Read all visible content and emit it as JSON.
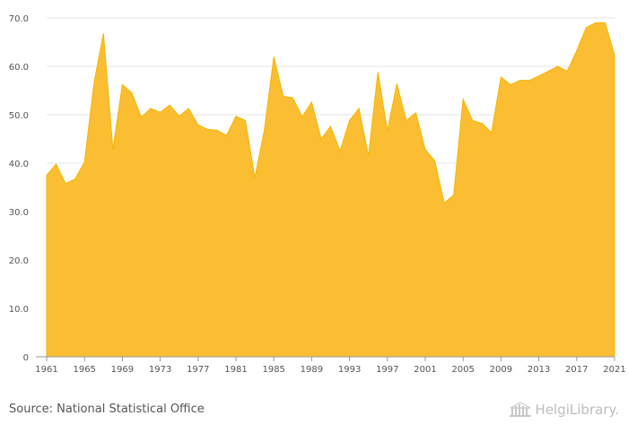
{
  "chart_data": {
    "type": "area",
    "title": "",
    "xlabel": "",
    "ylabel": "",
    "ylim": [
      0,
      70
    ],
    "yticks": [
      0,
      10,
      20,
      30,
      40,
      50,
      60,
      70
    ],
    "ytick_labels": [
      "0",
      "10.0",
      "20.0",
      "30.0",
      "40.0",
      "50.0",
      "60.0",
      "70.0"
    ],
    "xticks": [
      1961,
      1965,
      1969,
      1973,
      1977,
      1981,
      1985,
      1989,
      1993,
      1997,
      2001,
      2005,
      2009,
      2013,
      2017,
      2021
    ],
    "xtick_labels": [
      "1961",
      "1965",
      "1969",
      "1973",
      "1977",
      "1981",
      "1985",
      "1989",
      "1993",
      "1997",
      "2001",
      "2005",
      "2009",
      "2013",
      "2017",
      "2021"
    ],
    "x": [
      1961,
      1962,
      1963,
      1964,
      1965,
      1966,
      1967,
      1968,
      1969,
      1970,
      1971,
      1972,
      1973,
      1974,
      1975,
      1976,
      1977,
      1978,
      1979,
      1980,
      1981,
      1982,
      1983,
      1984,
      1985,
      1986,
      1987,
      1988,
      1989,
      1990,
      1991,
      1992,
      1993,
      1994,
      1995,
      1996,
      1997,
      1998,
      1999,
      2000,
      2001,
      2002,
      2003,
      2004,
      2005,
      2006,
      2007,
      2008,
      2009,
      2010,
      2011,
      2012,
      2013,
      2014,
      2015,
      2016,
      2017,
      2018,
      2019,
      2020,
      2021
    ],
    "values": [
      37.5,
      39.8,
      35.8,
      36.7,
      40.2,
      56.5,
      66.8,
      42.8,
      56.2,
      54.5,
      49.5,
      51.3,
      50.5,
      52.0,
      49.7,
      51.3,
      47.9,
      47.0,
      46.8,
      45.7,
      49.7,
      48.8,
      37.0,
      46.8,
      62.0,
      53.8,
      53.5,
      49.6,
      52.6,
      45.0,
      47.6,
      42.5,
      48.8,
      51.3,
      41.5,
      58.8,
      46.7,
      56.4,
      48.8,
      50.4,
      42.8,
      40.5,
      31.8,
      33.4,
      53.2,
      48.8,
      48.2,
      46.3,
      57.8,
      56.2,
      57.1,
      57.1,
      58.0,
      59.0,
      60.0,
      59.0,
      63.2,
      68.0,
      69.0,
      69.0,
      62.3
    ],
    "color": "#FBBE32",
    "grid": true
  },
  "footer": {
    "source": "Source: National Statistical Office",
    "logo_text": "HelgiLibrary."
  }
}
